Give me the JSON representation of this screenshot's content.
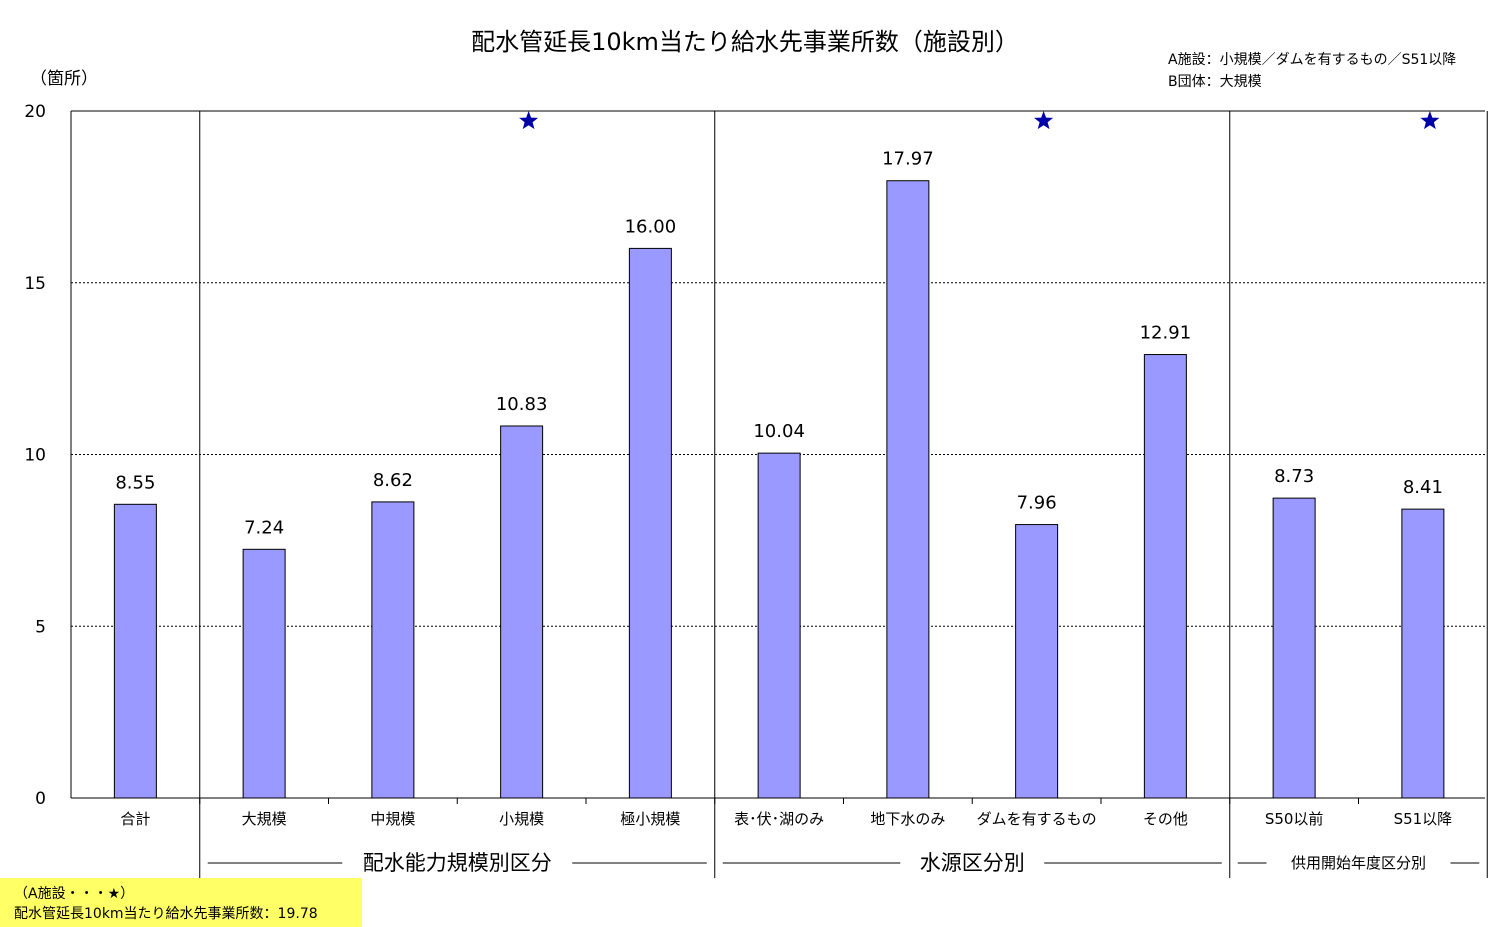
{
  "chart_data": {
    "type": "bar",
    "title": "配水管延長10km当たり給水先事業所数（施設別）",
    "y_unit": "（箇所）",
    "ylim": [
      0,
      20
    ],
    "yticks": [
      0,
      5,
      10,
      15,
      20
    ],
    "grid": true,
    "legend": {
      "placement": "top-right",
      "lines": [
        "A施設：小規模／ダムを有するもの／S51以降",
        "B団体：大規模"
      ]
    },
    "bar_color": "#9999ff",
    "star_color": "#0000aa",
    "categories": [
      "合計",
      "大規模",
      "中規模",
      "小規模",
      "極小規模",
      "表･伏･湖のみ",
      "地下水のみ",
      "ダムを有するもの",
      "その他",
      "S50以前",
      "S51以降"
    ],
    "values": [
      8.55,
      7.24,
      8.62,
      10.83,
      16.0,
      10.04,
      17.97,
      7.96,
      12.91,
      8.73,
      8.41
    ],
    "value_labels": [
      "8.55",
      "7.24",
      "8.62",
      "10.83",
      "16.00",
      "10.04",
      "17.97",
      "7.96",
      "12.91",
      "8.73",
      "8.41"
    ],
    "starred_categories": [
      "小規模",
      "ダムを有するもの",
      "S51以降"
    ],
    "groups": [
      {
        "label": "配水能力規模別区分",
        "categories": [
          "大規模",
          "中規模",
          "小規模",
          "極小規模"
        ]
      },
      {
        "label": "水源区分別",
        "categories": [
          "表･伏･湖のみ",
          "地下水のみ",
          "ダムを有するもの",
          "その他"
        ]
      },
      {
        "label": "供用開始年度区分別",
        "categories": [
          "S50以前",
          "S51以降"
        ]
      }
    ]
  },
  "note": {
    "line1": "（A施設・・・★）",
    "line2": "配水管延長10km当たり給水先事業所数：19.78"
  }
}
